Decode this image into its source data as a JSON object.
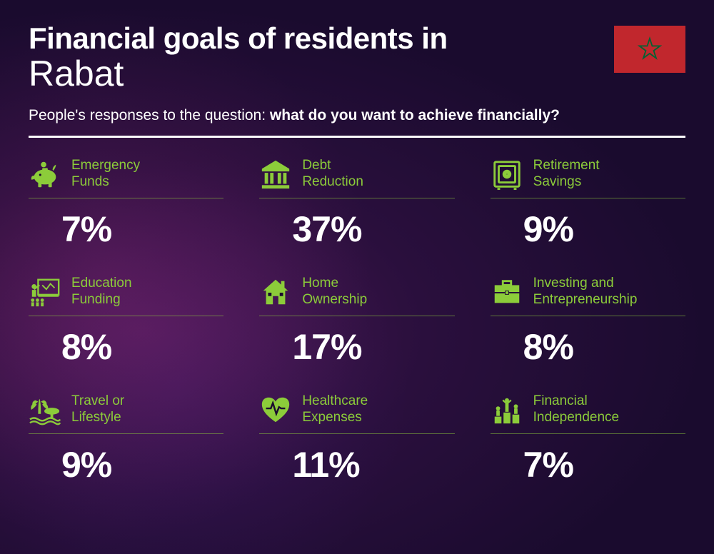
{
  "header": {
    "title_prefix": "Financial goals of residents in",
    "city": "Rabat",
    "subtitle_lead": "People's responses to the question: ",
    "subtitle_bold": "what do you want to achieve financially?"
  },
  "flag": {
    "country": "Morocco",
    "bg_color": "#c1272d",
    "star_color": "#006233"
  },
  "styling": {
    "accent_color": "#8ccc3a",
    "text_color": "#ffffff",
    "background_gradient": [
      "#4a1850",
      "#2a0f3d",
      "#1a0b2e"
    ],
    "title_fontsize": 42,
    "city_fontsize": 50,
    "subtitle_fontsize": 21,
    "value_fontsize": 50,
    "label_fontsize": 19,
    "grid_columns": 3,
    "grid_rows": 3
  },
  "items": [
    {
      "icon": "piggy-bank-icon",
      "label": "Emergency\nFunds",
      "value": "7%"
    },
    {
      "icon": "bank-icon",
      "label": "Debt\nReduction",
      "value": "37%"
    },
    {
      "icon": "safe-icon",
      "label": "Retirement\nSavings",
      "value": "9%"
    },
    {
      "icon": "education-icon",
      "label": "Education\nFunding",
      "value": "8%"
    },
    {
      "icon": "house-icon",
      "label": "Home\nOwnership",
      "value": "17%"
    },
    {
      "icon": "briefcase-icon",
      "label": "Investing and\nEntrepreneurship",
      "value": "8%"
    },
    {
      "icon": "travel-icon",
      "label": "Travel or\nLifestyle",
      "value": "9%"
    },
    {
      "icon": "healthcare-icon",
      "label": "Healthcare\nExpenses",
      "value": "11%"
    },
    {
      "icon": "independence-icon",
      "label": "Financial\nIndependence",
      "value": "7%"
    }
  ]
}
